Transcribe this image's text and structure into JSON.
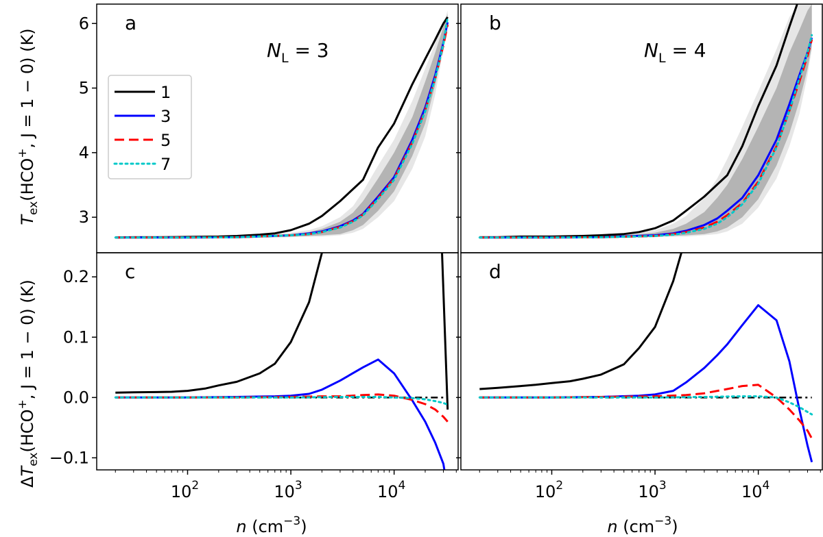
{
  "chart_data": {
    "type": "line",
    "x_scale": "log",
    "xlim_log10": [
      1.12,
      4.62
    ],
    "x_tick_exponents": [
      2,
      3,
      4
    ],
    "x_tick_base": "10",
    "xlabel": {
      "var": "n",
      "unit": " (cm",
      "exp": "−3",
      "close": ")"
    },
    "ylabel_top": {
      "prefix": "",
      "T": "T",
      "sub": "ex",
      "body": "(HCO",
      "sup": "+",
      "rest": ", J = 1 − 0) (K)"
    },
    "ylabel_bottom": {
      "prefix": "Δ",
      "T": "T",
      "sub": "ex",
      "body": "(HCO",
      "sup": "+",
      "rest": ", J = 1 − 0) (K)"
    },
    "top_ylim": [
      2.45,
      6.3
    ],
    "bottom_ylim": [
      -0.12,
      0.24
    ],
    "top_yticks": [
      3,
      4,
      5,
      6
    ],
    "bottom_yticks": [
      -0.1,
      0.0,
      0.1,
      0.2
    ],
    "bottom_ytick_labels": [
      "−0.1",
      "0.0",
      "0.1",
      "0.2"
    ],
    "colors": {
      "1": "#000000",
      "3": "#0000ff",
      "5": "#ff0000",
      "7": "#00c8c8",
      "band_light": "#e6e6e6",
      "band_dark": "#b4b4b4"
    },
    "legend": {
      "placement": "upper-left of panel a",
      "entries": [
        "1",
        "3",
        "5",
        "7"
      ]
    },
    "panels": [
      {
        "id": "a",
        "letter": "a",
        "row": "top",
        "col": 0,
        "annotation": {
          "var": "N",
          "sub": "L",
          "rest": " = 3"
        },
        "bands": [
          {
            "kind": "light",
            "x": [
              20,
              100,
              300,
              600,
              1000,
              1500,
              2000,
              3000,
              4000,
              5000,
              7000,
              10000,
              15000,
              20000,
              25000,
              30000,
              33000
            ],
            "lower": [
              2.68,
              2.68,
              2.68,
              2.68,
              2.69,
              2.7,
              2.7,
              2.72,
              2.76,
              2.82,
              3.0,
              3.25,
              3.75,
              4.25,
              4.9,
              5.6,
              6.15
            ],
            "upper": [
              2.71,
              2.71,
              2.72,
              2.74,
              2.76,
              2.8,
              2.86,
              3.0,
              3.17,
              3.4,
              3.8,
              4.2,
              4.8,
              5.3,
              5.7,
              6.0,
              6.2
            ]
          },
          {
            "kind": "dark",
            "x": [
              20,
              100,
              300,
              600,
              1000,
              1500,
              2000,
              3000,
              4000,
              5000,
              7000,
              10000,
              15000,
              20000,
              25000,
              30000,
              33000
            ],
            "lower": [
              2.68,
              2.68,
              2.69,
              2.69,
              2.7,
              2.71,
              2.72,
              2.74,
              2.8,
              2.88,
              3.1,
              3.4,
              3.95,
              4.45,
              5.05,
              5.7,
              6.1
            ],
            "upper": [
              2.7,
              2.7,
              2.71,
              2.72,
              2.74,
              2.77,
              2.82,
              2.93,
              3.07,
              3.25,
              3.6,
              4.0,
              4.55,
              5.1,
              5.55,
              5.95,
              6.15
            ]
          }
        ],
        "series": [
          {
            "name": "1",
            "style": "solid",
            "x": [
              20,
              30,
              50,
              100,
              200,
              300,
              500,
              700,
              1000,
              1500,
              2000,
              3000,
              5000,
              7000,
              10000,
              15000,
              20000,
              25000,
              30000,
              33000
            ],
            "y": [
              2.685,
              2.69,
              2.69,
              2.695,
              2.7,
              2.71,
              2.73,
              2.75,
              2.8,
              2.9,
              3.02,
              3.25,
              3.58,
              4.08,
              4.45,
              5.06,
              5.45,
              5.75,
              6.0,
              6.1
            ]
          },
          {
            "name": "3",
            "style": "solid",
            "x": [
              20,
              50,
              100,
              300,
              1000,
              1500,
              2000,
              3000,
              4000,
              5000,
              7000,
              10000,
              15000,
              20000,
              25000,
              30000,
              33000
            ],
            "y": [
              2.685,
              2.686,
              2.687,
              2.69,
              2.72,
              2.75,
              2.78,
              2.86,
              2.95,
              3.05,
              3.32,
              3.62,
              4.2,
              4.7,
              5.2,
              5.7,
              6.02
            ]
          },
          {
            "name": "5",
            "style": "dashed",
            "x": [
              20,
              50,
              100,
              300,
              1000,
              1500,
              2000,
              3000,
              4000,
              5000,
              7000,
              10000,
              15000,
              20000,
              25000,
              30000,
              33000
            ],
            "y": [
              2.685,
              2.686,
              2.687,
              2.69,
              2.72,
              2.74,
              2.77,
              2.85,
              2.94,
              3.04,
              3.3,
              3.6,
              4.16,
              4.66,
              5.15,
              5.66,
              5.98
            ]
          },
          {
            "name": "7",
            "style": "dotted",
            "x": [
              20,
              50,
              100,
              300,
              1000,
              1500,
              2000,
              3000,
              4000,
              5000,
              7000,
              10000,
              15000,
              20000,
              25000,
              30000,
              33000
            ],
            "y": [
              2.685,
              2.686,
              2.687,
              2.69,
              2.72,
              2.74,
              2.77,
              2.84,
              2.93,
              3.03,
              3.28,
              3.58,
              4.14,
              4.64,
              5.15,
              5.68,
              6.1
            ]
          }
        ]
      },
      {
        "id": "b",
        "letter": "b",
        "row": "top",
        "col": 1,
        "annotation": {
          "var": "N",
          "sub": "L",
          "rest": " = 4"
        },
        "bands": [
          {
            "kind": "light",
            "x": [
              20,
              100,
              300,
              600,
              1000,
              1500,
              2000,
              3000,
              4000,
              5000,
              7000,
              10000,
              15000,
              20000,
              25000,
              30000,
              33000
            ],
            "lower": [
              2.68,
              2.68,
              2.68,
              2.68,
              2.69,
              2.7,
              2.7,
              2.72,
              2.74,
              2.78,
              2.9,
              3.15,
              3.6,
              4.1,
              4.6,
              5.2,
              5.6
            ],
            "upper": [
              2.71,
              2.72,
              2.74,
              2.76,
              2.8,
              2.9,
              3.02,
              3.3,
              3.6,
              3.9,
              4.4,
              4.95,
              5.6,
              6.1,
              6.3,
              6.3,
              6.3
            ]
          },
          {
            "kind": "dark",
            "x": [
              20,
              100,
              300,
              600,
              1000,
              1500,
              2000,
              3000,
              4000,
              5000,
              7000,
              10000,
              15000,
              20000,
              25000,
              30000,
              33000
            ],
            "lower": [
              2.68,
              2.68,
              2.69,
              2.69,
              2.7,
              2.71,
              2.72,
              2.74,
              2.78,
              2.84,
              3.0,
              3.28,
              3.8,
              4.3,
              4.8,
              5.3,
              5.65
            ],
            "upper": [
              2.7,
              2.7,
              2.71,
              2.73,
              2.76,
              2.82,
              2.9,
              3.08,
              3.3,
              3.5,
              3.9,
              4.4,
              5.0,
              5.55,
              5.9,
              6.2,
              6.3
            ]
          }
        ],
        "series": [
          {
            "name": "1",
            "style": "solid",
            "x": [
              20,
              30,
              50,
              100,
              200,
              300,
              500,
              700,
              1000,
              1500,
              2000,
              3000,
              5000,
              7000,
              10000,
              15000,
              20000,
              25000
            ],
            "y": [
              2.69,
              2.69,
              2.7,
              2.7,
              2.71,
              2.72,
              2.74,
              2.77,
              2.83,
              2.95,
              3.1,
              3.32,
              3.65,
              4.1,
              4.72,
              5.35,
              5.95,
              6.4
            ]
          },
          {
            "name": "3",
            "style": "solid",
            "x": [
              20,
              50,
              100,
              300,
              1000,
              1500,
              2000,
              3000,
              4000,
              5000,
              7000,
              10000,
              15000,
              20000,
              25000,
              30000,
              33000
            ],
            "y": [
              2.685,
              2.686,
              2.687,
              2.69,
              2.72,
              2.75,
              2.79,
              2.88,
              2.98,
              3.1,
              3.3,
              3.65,
              4.2,
              4.75,
              5.2,
              5.55,
              5.78
            ]
          },
          {
            "name": "5",
            "style": "dashed",
            "x": [
              20,
              50,
              100,
              300,
              1000,
              1500,
              2000,
              3000,
              4000,
              5000,
              7000,
              10000,
              15000,
              20000,
              25000,
              30000,
              33000
            ],
            "y": [
              2.685,
              2.686,
              2.687,
              2.69,
              2.71,
              2.74,
              2.77,
              2.84,
              2.93,
              3.03,
              3.22,
              3.55,
              4.1,
              4.65,
              5.1,
              5.5,
              5.75
            ]
          },
          {
            "name": "7",
            "style": "dotted",
            "x": [
              20,
              50,
              100,
              300,
              1000,
              1500,
              2000,
              3000,
              4000,
              5000,
              7000,
              10000,
              15000,
              20000,
              25000,
              30000,
              33000
            ],
            "y": [
              2.685,
              2.686,
              2.687,
              2.69,
              2.71,
              2.73,
              2.76,
              2.82,
              2.9,
              3.0,
              3.2,
              3.52,
              4.08,
              4.65,
              5.15,
              5.55,
              5.82
            ]
          }
        ]
      },
      {
        "id": "c",
        "letter": "c",
        "row": "bottom",
        "col": 0,
        "bands": [],
        "baseline": {
          "y": 0.0,
          "style": "dashdot",
          "color": "#000000"
        },
        "series": [
          {
            "name": "1",
            "style": "solid",
            "x": [
              20,
              30,
              50,
              70,
              100,
              150,
              200,
              300,
              500,
              700,
              1000,
              1500,
              2000,
              2500,
              28000,
              33000
            ],
            "y": [
              0.008,
              0.0085,
              0.009,
              0.0095,
              0.011,
              0.015,
              0.02,
              0.026,
              0.04,
              0.056,
              0.092,
              0.158,
              0.24,
              0.32,
              0.32,
              -0.02
            ]
          },
          {
            "name": "3",
            "style": "solid",
            "x": [
              20,
              50,
              100,
              300,
              700,
              1000,
              1500,
              2000,
              3000,
              5000,
              7000,
              10000,
              15000,
              20000,
              25000,
              30000,
              31000
            ],
            "y": [
              0.0,
              0.0,
              0.0,
              0.001,
              0.002,
              0.003,
              0.006,
              0.013,
              0.028,
              0.05,
              0.063,
              0.04,
              -0.005,
              -0.04,
              -0.075,
              -0.11,
              -0.125
            ]
          },
          {
            "name": "5",
            "style": "dashed",
            "x": [
              20,
              50,
              100,
              300,
              1000,
              2000,
              3000,
              5000,
              7000,
              10000,
              15000,
              20000,
              25000,
              30000,
              33000
            ],
            "y": [
              0.0,
              0.0,
              0.0,
              0.0,
              0.001,
              0.002,
              0.002,
              0.004,
              0.005,
              0.003,
              -0.004,
              -0.011,
              -0.02,
              -0.032,
              -0.04
            ]
          },
          {
            "name": "7",
            "style": "dotted",
            "x": [
              20,
              50,
              100,
              300,
              1000,
              3000,
              7000,
              10000,
              15000,
              20000,
              25000,
              30000,
              33000
            ],
            "y": [
              0.0,
              0.0,
              0.0,
              0.0,
              0.0,
              0.001,
              0.001,
              0.0,
              -0.001,
              -0.003,
              -0.006,
              -0.009,
              -0.012
            ]
          }
        ]
      },
      {
        "id": "d",
        "letter": "d",
        "row": "bottom",
        "col": 1,
        "bands": [],
        "baseline": {
          "y": 0.0,
          "style": "dashdot",
          "color": "#000000"
        },
        "series": [
          {
            "name": "1",
            "style": "solid",
            "x": [
              20,
              30,
              50,
              70,
              100,
              150,
              200,
              300,
              500,
              700,
              1000,
              1500,
              1800,
              2200
            ],
            "y": [
              0.014,
              0.016,
              0.019,
              0.021,
              0.024,
              0.027,
              0.031,
              0.038,
              0.055,
              0.082,
              0.117,
              0.193,
              0.24,
              0.3
            ]
          },
          {
            "name": "3",
            "style": "solid",
            "x": [
              20,
              50,
              100,
              300,
              700,
              1000,
              1500,
              2000,
              3000,
              4000,
              5000,
              7000,
              10000,
              15000,
              20000,
              25000,
              30000,
              33000
            ],
            "y": [
              0.0,
              0.0,
              0.0,
              0.001,
              0.003,
              0.005,
              0.011,
              0.025,
              0.049,
              0.07,
              0.088,
              0.12,
              0.153,
              0.128,
              0.06,
              -0.02,
              -0.08,
              -0.107
            ]
          },
          {
            "name": "5",
            "style": "dashed",
            "x": [
              20,
              50,
              100,
              300,
              1000,
              2000,
              3000,
              5000,
              7000,
              10000,
              15000,
              20000,
              25000,
              30000,
              33000
            ],
            "y": [
              0.0,
              0.0,
              0.0,
              0.001,
              0.002,
              0.004,
              0.007,
              0.014,
              0.019,
              0.021,
              0.0,
              -0.02,
              -0.038,
              -0.055,
              -0.068
            ]
          },
          {
            "name": "7",
            "style": "dotted",
            "x": [
              20,
              50,
              100,
              300,
              1000,
              3000,
              7000,
              10000,
              15000,
              20000,
              25000,
              30000,
              33000
            ],
            "y": [
              0.0,
              0.0,
              0.0,
              0.0,
              0.0,
              0.001,
              0.002,
              0.002,
              0.0,
              -0.008,
              -0.016,
              -0.024,
              -0.028
            ]
          }
        ]
      }
    ]
  }
}
